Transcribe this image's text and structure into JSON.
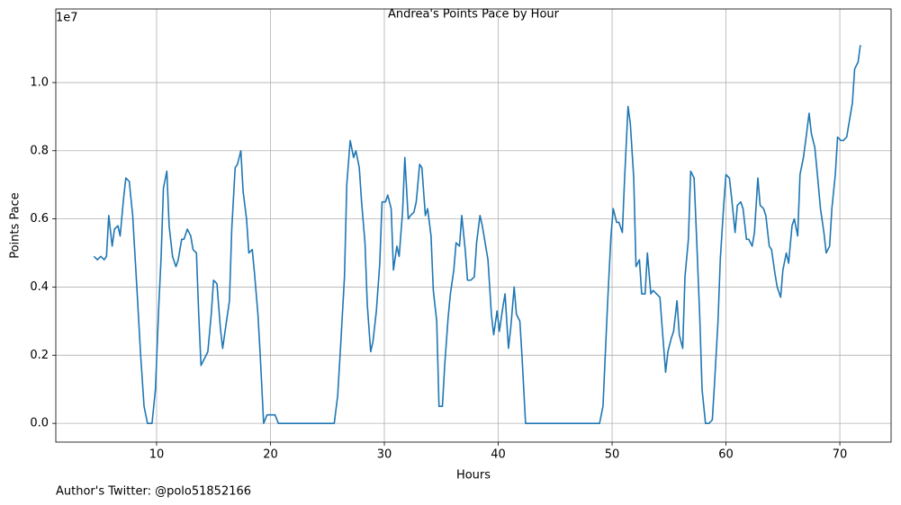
{
  "chart_data": {
    "type": "line",
    "title": "Andrea's Points Pace by Hour",
    "x_label": "Hours",
    "y_label": "Points Pace",
    "y_offset_label": "1e7",
    "footer": "Author's Twitter: @polo51852166",
    "color": "#1f77b4",
    "grid": true,
    "xlim": [
      1.15,
      74.5
    ],
    "ylim": [
      -0.055,
      1.216
    ],
    "xticks": [
      10,
      20,
      30,
      40,
      50,
      60,
      70
    ],
    "yticks": [
      {
        "value": 0,
        "label": "0.0"
      },
      0.2,
      0.4,
      0.6,
      0.8,
      {
        "value": 1,
        "label": "1.0"
      }
    ],
    "x": [
      4.5,
      4.8,
      5.1,
      5.4,
      5.6,
      5.8,
      6.1,
      6.3,
      6.6,
      6.8,
      7.1,
      7.3,
      7.6,
      7.9,
      8.3,
      8.6,
      8.9,
      9.2,
      9.6,
      9.9,
      10.2,
      10.4,
      10.6,
      10.9,
      11.1,
      11.4,
      11.7,
      11.9,
      12.2,
      12.4,
      12.7,
      13.0,
      13.2,
      13.5,
      13.7,
      13.9,
      14.2,
      14.5,
      14.8,
      15.0,
      15.3,
      15.6,
      15.8,
      16.1,
      16.4,
      16.6,
      16.9,
      17.1,
      17.4,
      17.6,
      17.9,
      18.1,
      18.4,
      18.6,
      18.9,
      19.1,
      19.4,
      19.7,
      20.0,
      20.4,
      20.7,
      25.6,
      25.9,
      26.2,
      26.5,
      26.7,
      27.0,
      27.3,
      27.5,
      27.8,
      28.0,
      28.3,
      28.5,
      28.8,
      29.0,
      29.3,
      29.6,
      29.8,
      30.1,
      30.3,
      30.6,
      30.8,
      31.1,
      31.3,
      31.6,
      31.8,
      32.1,
      32.3,
      32.6,
      32.8,
      33.1,
      33.3,
      33.6,
      33.8,
      34.1,
      34.3,
      34.6,
      34.8,
      35.1,
      35.3,
      35.6,
      35.8,
      36.1,
      36.3,
      36.6,
      36.8,
      37.1,
      37.3,
      37.6,
      37.9,
      38.1,
      38.4,
      38.6,
      38.9,
      39.1,
      39.4,
      39.6,
      39.9,
      40.1,
      40.4,
      40.6,
      40.9,
      41.1,
      41.4,
      41.6,
      41.9,
      42.1,
      42.4,
      48.9,
      49.2,
      49.6,
      49.9,
      50.1,
      50.4,
      50.6,
      50.9,
      51.1,
      51.4,
      51.6,
      51.9,
      52.1,
      52.4,
      52.6,
      52.9,
      53.1,
      53.4,
      53.6,
      53.9,
      54.2,
      54.4,
      54.7,
      54.9,
      55.2,
      55.4,
      55.7,
      55.9,
      56.2,
      56.4,
      56.7,
      56.9,
      57.2,
      57.4,
      57.7,
      57.9,
      58.2,
      58.5,
      58.8,
      59.0,
      59.3,
      59.5,
      59.8,
      60.0,
      60.3,
      60.5,
      60.8,
      61.0,
      61.3,
      61.5,
      61.8,
      62.0,
      62.3,
      62.5,
      62.8,
      63.0,
      63.3,
      63.5,
      63.8,
      64.0,
      64.3,
      64.5,
      64.8,
      65.0,
      65.3,
      65.5,
      65.8,
      66.0,
      66.3,
      66.5,
      66.8,
      67.0,
      67.3,
      67.5,
      67.8,
      68.0,
      68.3,
      68.6,
      68.8,
      69.1,
      69.3,
      69.6,
      69.8,
      70.1,
      70.3,
      70.6,
      70.8,
      71.1,
      71.3,
      71.6,
      71.8
    ],
    "values": [
      0.49,
      0.48,
      0.49,
      0.48,
      0.49,
      0.61,
      0.52,
      0.57,
      0.58,
      0.55,
      0.66,
      0.72,
      0.71,
      0.61,
      0.38,
      0.2,
      0.05,
      0,
      0,
      0.1,
      0.35,
      0.49,
      0.69,
      0.74,
      0.58,
      0.49,
      0.46,
      0.48,
      0.54,
      0.54,
      0.57,
      0.55,
      0.51,
      0.5,
      0.32,
      0.17,
      0.19,
      0.21,
      0.32,
      0.42,
      0.41,
      0.28,
      0.22,
      0.29,
      0.36,
      0.57,
      0.75,
      0.76,
      0.8,
      0.68,
      0.6,
      0.5,
      0.51,
      0.44,
      0.32,
      0.2,
      0,
      0.025,
      0.025,
      0.025,
      0,
      0,
      0.08,
      0.25,
      0.43,
      0.7,
      0.83,
      0.78,
      0.8,
      0.75,
      0.65,
      0.53,
      0.35,
      0.21,
      0.24,
      0.33,
      0.47,
      0.65,
      0.65,
      0.67,
      0.63,
      0.45,
      0.52,
      0.49,
      0.62,
      0.78,
      0.6,
      0.61,
      0.62,
      0.65,
      0.76,
      0.75,
      0.61,
      0.63,
      0.55,
      0.39,
      0.3,
      0.05,
      0.05,
      0.17,
      0.31,
      0.38,
      0.45,
      0.53,
      0.52,
      0.61,
      0.51,
      0.42,
      0.42,
      0.43,
      0.53,
      0.61,
      0.58,
      0.52,
      0.48,
      0.32,
      0.26,
      0.33,
      0.27,
      0.34,
      0.38,
      0.22,
      0.28,
      0.4,
      0.32,
      0.3,
      0.19,
      0,
      0,
      0.05,
      0.35,
      0.55,
      0.63,
      0.59,
      0.59,
      0.56,
      0.72,
      0.93,
      0.88,
      0.72,
      0.46,
      0.48,
      0.38,
      0.38,
      0.5,
      0.38,
      0.39,
      0.38,
      0.37,
      0.28,
      0.15,
      0.21,
      0.25,
      0.27,
      0.36,
      0.26,
      0.22,
      0.43,
      0.54,
      0.74,
      0.72,
      0.56,
      0.31,
      0.1,
      0,
      0,
      0.01,
      0.12,
      0.3,
      0.48,
      0.64,
      0.73,
      0.72,
      0.66,
      0.56,
      0.64,
      0.65,
      0.63,
      0.54,
      0.54,
      0.52,
      0.56,
      0.72,
      0.64,
      0.63,
      0.61,
      0.52,
      0.51,
      0.44,
      0.4,
      0.37,
      0.45,
      0.5,
      0.47,
      0.58,
      0.6,
      0.55,
      0.73,
      0.78,
      0.83,
      0.91,
      0.85,
      0.81,
      0.74,
      0.63,
      0.56,
      0.5,
      0.52,
      0.63,
      0.73,
      0.84,
      0.83,
      0.83,
      0.84,
      0.88,
      0.94,
      1.04,
      1.06,
      1.11
    ]
  }
}
